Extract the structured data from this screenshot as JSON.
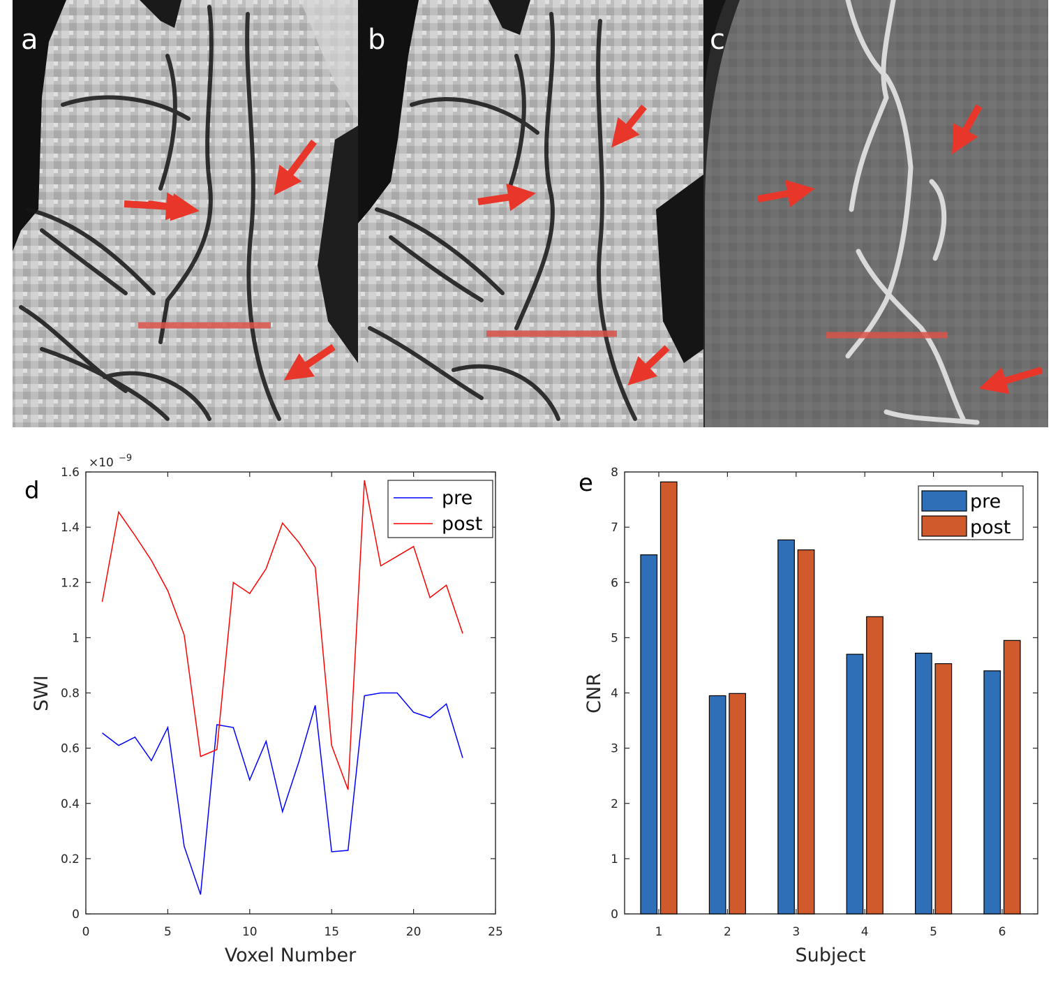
{
  "panels": {
    "image_a": "a",
    "image_b": "b",
    "image_c": "c",
    "chart_d": "d",
    "chart_e": "e"
  },
  "colors": {
    "arrow": "#e8362a",
    "profile_line": "#d9534a",
    "pre_line": "#0000ff",
    "post_line": "#ff0000",
    "pre_bar": "#2e6fb7",
    "post_bar": "#d15a2c"
  },
  "chart_data": [
    {
      "type": "line",
      "panel": "d",
      "xlabel": "Voxel Number",
      "ylabel": "SWI",
      "exponent_label": "×10^{-9}",
      "exponent_base": "×10",
      "exponent_power": "−9",
      "xlim": [
        0,
        25
      ],
      "ylim": [
        0,
        1.6
      ],
      "xticks": [
        0,
        5,
        10,
        15,
        20,
        25
      ],
      "yticks": [
        0,
        0.2,
        0.4,
        0.6,
        0.8,
        1,
        1.2,
        1.4,
        1.6
      ],
      "ytick_labels": [
        "0",
        "0.2",
        "0.4",
        "0.6",
        "0.8",
        "1",
        "1.2",
        "1.4",
        "1.6"
      ],
      "x": [
        1,
        2,
        3,
        4,
        5,
        6,
        7,
        8,
        9,
        10,
        11,
        12,
        13,
        14,
        15,
        16,
        17,
        18,
        19,
        20,
        21,
        22,
        23
      ],
      "legend_position": "top-right",
      "series": [
        {
          "name": "pre",
          "color": "#0000ff",
          "values": [
            0.655,
            0.61,
            0.64,
            0.555,
            0.675,
            0.245,
            0.07,
            0.685,
            0.675,
            0.485,
            0.625,
            0.37,
            0.55,
            0.755,
            0.225,
            0.23,
            0.79,
            0.8,
            0.8,
            0.73,
            0.71,
            0.76,
            0.565
          ]
        },
        {
          "name": "post",
          "color": "#ff0000",
          "values": [
            1.13,
            1.455,
            1.37,
            1.28,
            1.17,
            1.01,
            0.57,
            0.595,
            1.2,
            1.16,
            1.25,
            1.415,
            1.345,
            1.255,
            0.61,
            0.45,
            1.57,
            1.26,
            1.295,
            1.33,
            1.145,
            1.19,
            1.015
          ]
        }
      ]
    },
    {
      "type": "bar",
      "panel": "e",
      "xlabel": "Subject",
      "ylabel": "CNR",
      "ylim": [
        0,
        8
      ],
      "yticks": [
        0,
        1,
        2,
        3,
        4,
        5,
        6,
        7,
        8
      ],
      "categories": [
        "1",
        "2",
        "3",
        "4",
        "5",
        "6"
      ],
      "legend_position": "top-right",
      "series": [
        {
          "name": "pre",
          "color": "#2e6fb7",
          "values": [
            6.5,
            3.95,
            6.77,
            4.7,
            4.72,
            4.4
          ]
        },
        {
          "name": "post",
          "color": "#d15a2c",
          "values": [
            7.82,
            3.99,
            6.59,
            5.38,
            4.53,
            4.95
          ]
        }
      ]
    }
  ]
}
